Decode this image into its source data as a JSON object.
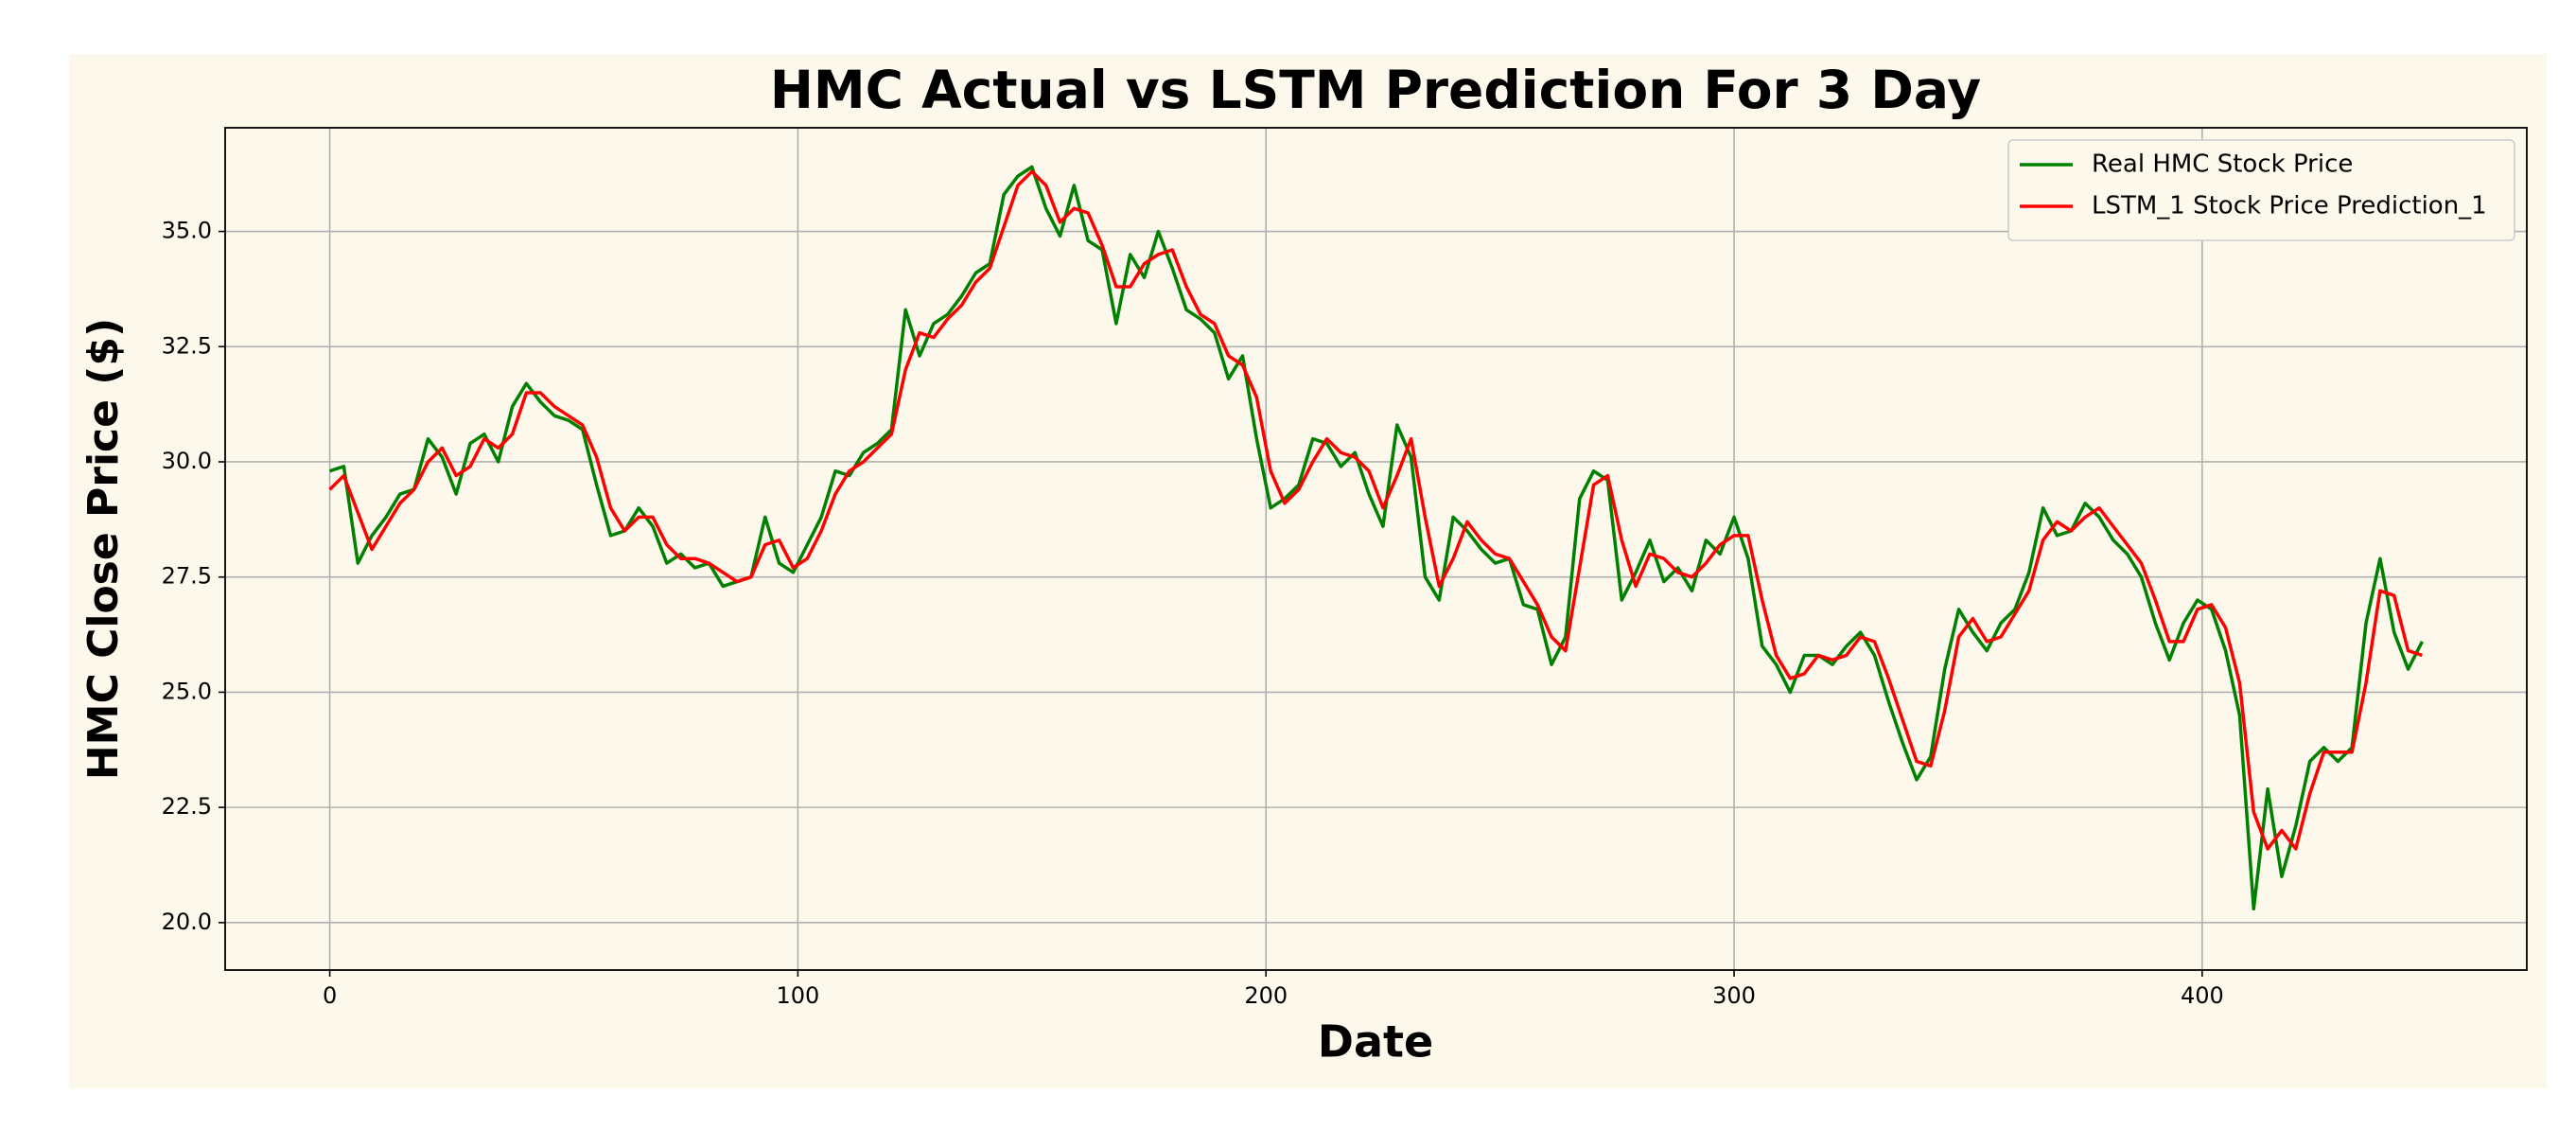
{
  "chart_data": {
    "type": "line",
    "title": "HMC Actual vs LSTM Prediction For 3 Day",
    "xlabel": "Date",
    "ylabel": "HMC Close Price ($)",
    "x": [
      0,
      3,
      6,
      9,
      12,
      15,
      18,
      21,
      24,
      27,
      30,
      33,
      36,
      39,
      42,
      45,
      48,
      51,
      54,
      57,
      60,
      63,
      66,
      69,
      72,
      75,
      78,
      81,
      84,
      87,
      90,
      93,
      96,
      99,
      102,
      105,
      108,
      111,
      114,
      117,
      120,
      123,
      126,
      129,
      132,
      135,
      138,
      141,
      144,
      147,
      150,
      153,
      156,
      159,
      162,
      165,
      168,
      171,
      174,
      177,
      180,
      183,
      186,
      189,
      192,
      195,
      198,
      201,
      204,
      207,
      210,
      213,
      216,
      219,
      222,
      225,
      228,
      231,
      234,
      237,
      240,
      243,
      246,
      249,
      252,
      255,
      258,
      261,
      264,
      267,
      270,
      273,
      276,
      279,
      282,
      285,
      288,
      291,
      294,
      297,
      300,
      303,
      306,
      309,
      312,
      315,
      318,
      321,
      324,
      327,
      330,
      333,
      336,
      339,
      342,
      345,
      348,
      351,
      354,
      357,
      360,
      363,
      366,
      369,
      372,
      375,
      378,
      381,
      384,
      387,
      390,
      393,
      396,
      399,
      402,
      405,
      408,
      411,
      414,
      417,
      420,
      423,
      426,
      429,
      432,
      435,
      438,
      441,
      444,
      447
    ],
    "series": [
      {
        "name": "Real HMC Stock Price",
        "color": "#008000",
        "values": [
          29.8,
          29.9,
          27.8,
          28.4,
          28.8,
          29.3,
          29.4,
          30.5,
          30.1,
          29.3,
          30.4,
          30.6,
          30.0,
          31.2,
          31.7,
          31.3,
          31.0,
          30.9,
          30.7,
          29.5,
          28.4,
          28.5,
          29.0,
          28.6,
          27.8,
          28.0,
          27.7,
          27.8,
          27.3,
          27.4,
          27.5,
          28.8,
          27.8,
          27.6,
          28.2,
          28.8,
          29.8,
          29.7,
          30.2,
          30.4,
          30.7,
          33.3,
          32.3,
          33.0,
          33.2,
          33.6,
          34.1,
          34.3,
          35.8,
          36.2,
          36.4,
          35.5,
          34.9,
          36.0,
          34.8,
          34.6,
          33.0,
          34.5,
          34.0,
          35.0,
          34.2,
          33.3,
          33.1,
          32.8,
          31.8,
          32.3,
          30.5,
          29.0,
          29.2,
          29.5,
          30.5,
          30.4,
          29.9,
          30.2,
          29.3,
          28.6,
          30.8,
          30.1,
          27.5,
          27.0,
          28.8,
          28.5,
          28.1,
          27.8,
          27.9,
          26.9,
          26.8,
          25.6,
          26.2,
          29.2,
          29.8,
          29.6,
          27.0,
          27.6,
          28.3,
          27.4,
          27.7,
          27.2,
          28.3,
          28.0,
          28.8,
          27.9,
          26.0,
          25.6,
          25.0,
          25.8,
          25.8,
          25.6,
          26.0,
          26.3,
          25.8,
          24.8,
          23.9,
          23.1,
          23.6,
          25.5,
          26.8,
          26.3,
          25.9,
          26.5,
          26.8,
          27.6,
          29.0,
          28.4,
          28.5,
          29.1,
          28.8,
          28.3,
          28.0,
          27.5,
          26.5,
          25.7,
          26.5,
          27.0,
          26.8,
          25.9,
          24.5,
          20.3,
          22.9,
          21.0,
          22.1,
          23.5,
          23.8,
          23.5,
          23.8,
          26.5,
          27.9,
          26.3,
          25.5,
          26.1
        ]
      },
      {
        "name": "LSTM_1 Stock Price Prediction_1",
        "color": "#ff0000",
        "values": [
          29.4,
          29.7,
          28.9,
          28.1,
          28.6,
          29.1,
          29.4,
          30.0,
          30.3,
          29.7,
          29.9,
          30.5,
          30.3,
          30.6,
          31.5,
          31.5,
          31.2,
          31.0,
          30.8,
          30.1,
          29.0,
          28.5,
          28.8,
          28.8,
          28.2,
          27.9,
          27.9,
          27.8,
          27.6,
          27.4,
          27.5,
          28.2,
          28.3,
          27.7,
          27.9,
          28.5,
          29.3,
          29.8,
          30.0,
          30.3,
          30.6,
          32.0,
          32.8,
          32.7,
          33.1,
          33.4,
          33.9,
          34.2,
          35.1,
          36.0,
          36.3,
          36.0,
          35.2,
          35.5,
          35.4,
          34.7,
          33.8,
          33.8,
          34.3,
          34.5,
          34.6,
          33.8,
          33.2,
          33.0,
          32.3,
          32.1,
          31.4,
          29.8,
          29.1,
          29.4,
          30.0,
          30.5,
          30.2,
          30.1,
          29.8,
          29.0,
          29.7,
          30.5,
          28.8,
          27.3,
          27.9,
          28.7,
          28.3,
          28.0,
          27.9,
          27.4,
          26.9,
          26.2,
          25.9,
          27.7,
          29.5,
          29.7,
          28.3,
          27.3,
          28.0,
          27.9,
          27.6,
          27.5,
          27.8,
          28.2,
          28.4,
          28.4,
          27.0,
          25.8,
          25.3,
          25.4,
          25.8,
          25.7,
          25.8,
          26.2,
          26.1,
          25.3,
          24.4,
          23.5,
          23.4,
          24.6,
          26.2,
          26.6,
          26.1,
          26.2,
          26.7,
          27.2,
          28.3,
          28.7,
          28.5,
          28.8,
          29.0,
          28.6,
          28.2,
          27.8,
          27.0,
          26.1,
          26.1,
          26.8,
          26.9,
          26.4,
          25.2,
          22.4,
          21.6,
          22.0,
          21.6,
          22.8,
          23.7,
          23.7,
          23.7,
          25.2,
          27.2,
          27.1,
          25.9,
          25.8
        ]
      }
    ],
    "xlim": [
      -22.35,
      469.35
    ],
    "ylim": [
      18.97,
      37.25
    ],
    "xticks": [
      0,
      100,
      200,
      300,
      400
    ],
    "yticks": [
      {
        "value": 20,
        "label": "20.0"
      },
      {
        "value": 22.5,
        "label": "22.5"
      },
      {
        "value": 25,
        "label": "25.0"
      },
      {
        "value": 27.5,
        "label": "27.5"
      },
      {
        "value": 30,
        "label": "30.0"
      },
      {
        "value": 32.5,
        "label": "32.5"
      },
      {
        "value": 35,
        "label": "35.0"
      }
    ],
    "grid": true,
    "legend": "upper right"
  }
}
